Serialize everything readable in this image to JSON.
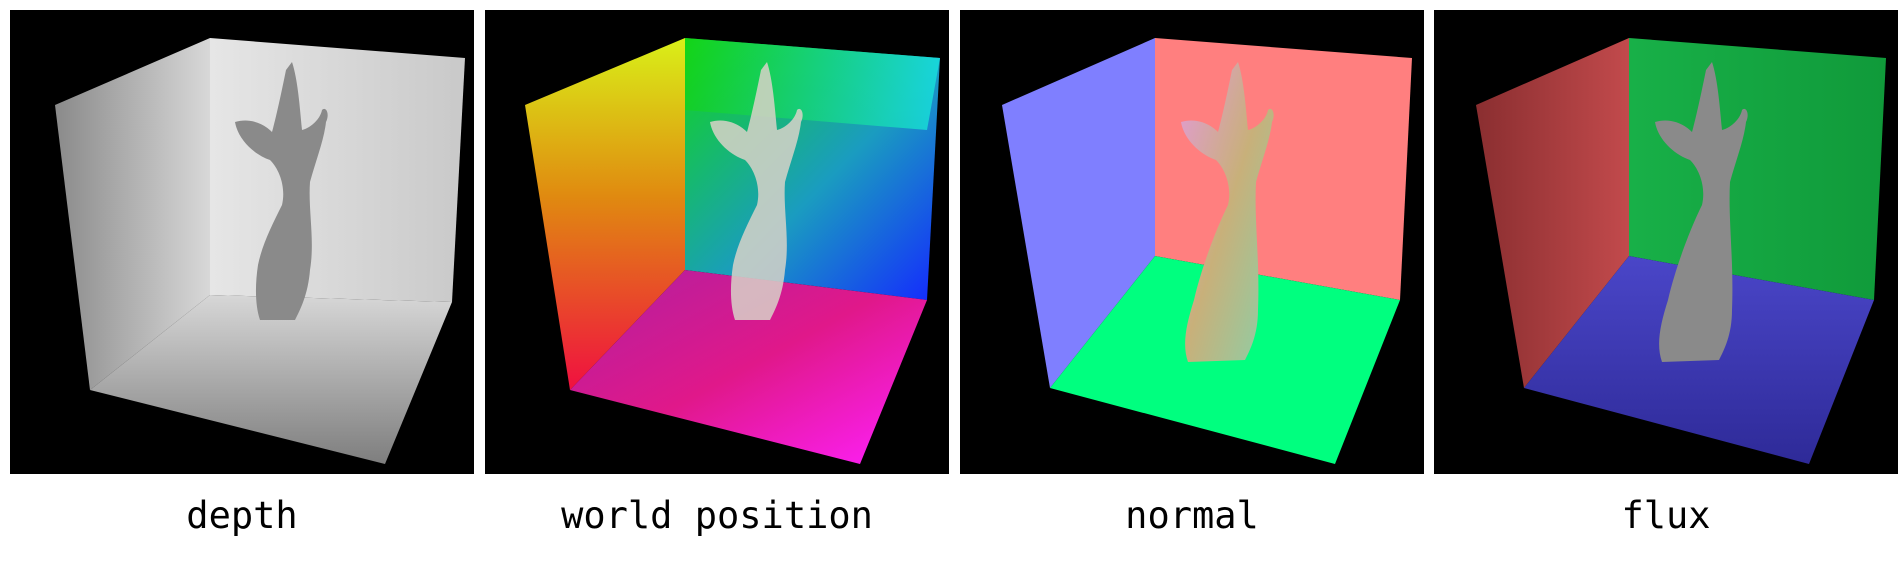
{
  "panels": [
    {
      "label": "depth",
      "wall_left": "#a9a9a9",
      "wall_back": "#d6d6d6",
      "floor": "#9e9e9e",
      "statue": "#7f7f7f"
    },
    {
      "label": "world position",
      "wall_left": "#b4e21c",
      "wall_back": "#22d67a",
      "floor": "#c319a6",
      "statue": "#d8d2c8"
    },
    {
      "label": "normal",
      "wall_left": "#7f7fff",
      "wall_back": "#ff7f7f",
      "floor": "#00ff7f",
      "statue": "#d7a6c6"
    },
    {
      "label": "flux",
      "wall_left": "#a33b3c",
      "wall_back": "#14a443",
      "floor": "#3b38b0",
      "statue": "#8a8a8a"
    }
  ]
}
